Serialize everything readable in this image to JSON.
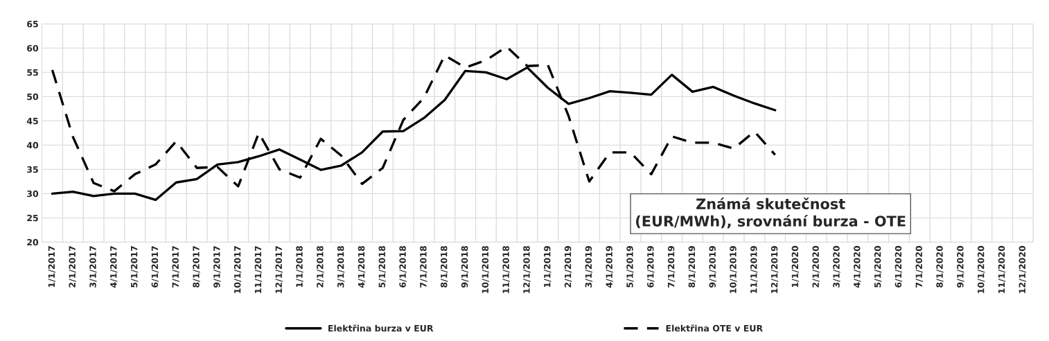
{
  "chart_data": {
    "type": "line",
    "title": "Známá skutečnost\n(EUR/MWh), srovnání burza - OTE",
    "categories": [
      "1/1/2017",
      "2/1/2017",
      "3/1/2017",
      "4/1/2017",
      "5/1/2017",
      "6/1/2017",
      "7/1/2017",
      "8/1/2017",
      "9/1/2017",
      "10/1/2017",
      "11/1/2017",
      "12/1/2017",
      "1/1/2018",
      "2/1/2018",
      "3/1/2018",
      "4/1/2018",
      "5/1/2018",
      "6/1/2018",
      "7/1/2018",
      "8/1/2018",
      "9/1/2018",
      "10/1/2018",
      "11/1/2018",
      "12/1/2018",
      "1/1/2019",
      "2/1/2019",
      "3/1/2019",
      "4/1/2019",
      "5/1/2019",
      "6/1/2019",
      "7/1/2019",
      "8/1/2019",
      "9/1/2019",
      "10/1/2019",
      "11/1/2019",
      "12/1/2019",
      "1/1/2020",
      "2/1/2020",
      "3/1/2020",
      "4/1/2020",
      "5/1/2020",
      "6/1/2020",
      "7/1/2020",
      "8/1/2020",
      "9/1/2020",
      "10/1/2020",
      "11/1/2020",
      "12/1/2020"
    ],
    "series": [
      {
        "name": "Elektřina burza v EUR",
        "color": "#000000",
        "line_style": "solid",
        "values": [
          30.0,
          30.4,
          29.5,
          30.0,
          30.0,
          28.7,
          32.3,
          33.0,
          36.0,
          36.5,
          37.7,
          39.1,
          37.0,
          34.9,
          35.8,
          38.5,
          42.8,
          42.9,
          45.6,
          49.3,
          55.3,
          55.0,
          53.6,
          56.0,
          51.8,
          48.5,
          49.7,
          51.1,
          50.8,
          50.4,
          54.5,
          51.0,
          52.0,
          50.2,
          48.6,
          47.2,
          null,
          null,
          null,
          null,
          null,
          null,
          null,
          null,
          null,
          null,
          null,
          null
        ]
      },
      {
        "name": "Elektřina OTE v EUR",
        "color": "#000000",
        "line_style": "dashed",
        "values": [
          55.5,
          41.7,
          32.2,
          30.5,
          34.0,
          36.0,
          40.8,
          35.3,
          35.5,
          31.5,
          42.5,
          35.0,
          33.3,
          41.3,
          37.8,
          32.0,
          35.3,
          45.2,
          49.8,
          58.5,
          56.0,
          57.5,
          60.3,
          56.3,
          56.5,
          46.0,
          32.5,
          38.5,
          38.5,
          34.0,
          41.8,
          40.5,
          40.5,
          39.3,
          42.8,
          38.0,
          null,
          null,
          null,
          null,
          null,
          null,
          null,
          null,
          null,
          null,
          null,
          null
        ]
      }
    ],
    "ylim": [
      20,
      65
    ],
    "yticks": [
      20,
      25,
      30,
      35,
      40,
      45,
      50,
      55,
      60,
      65
    ],
    "grid": true,
    "legend": "bottom",
    "marker": "none"
  }
}
